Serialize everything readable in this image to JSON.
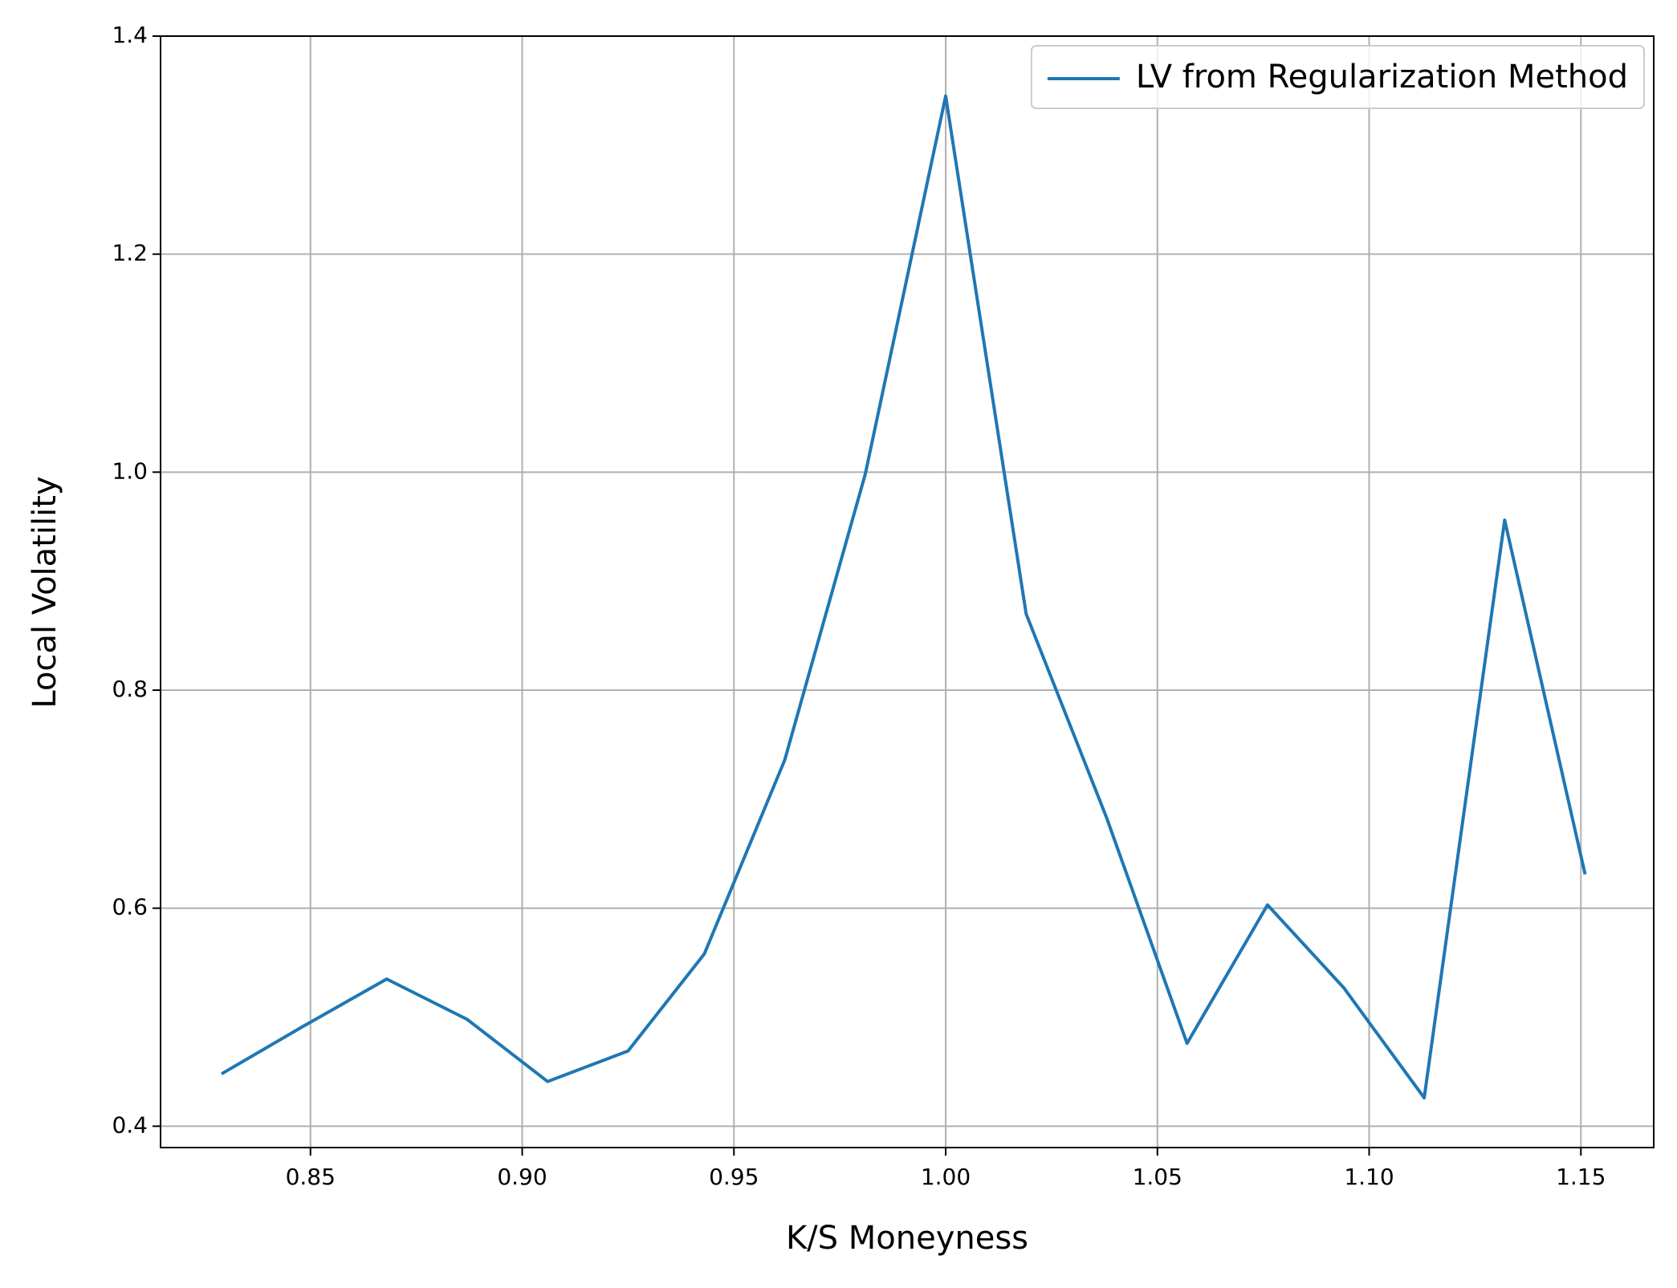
{
  "chart_data": {
    "type": "line",
    "x_label": "K/S Moneyness",
    "y_label": "Local Volatility",
    "x": [
      0.829,
      0.848,
      0.868,
      0.887,
      0.906,
      0.925,
      0.943,
      0.962,
      0.981,
      1.0,
      1.019,
      1.038,
      1.057,
      1.076,
      1.094,
      1.113,
      1.132,
      1.151
    ],
    "series": [
      {
        "name": "LV from Regularization Method",
        "color": "#1f77b4",
        "values": [
          0.448,
          0.491,
          0.535,
          0.498,
          0.441,
          0.469,
          0.558,
          0.736,
          0.998,
          1.345,
          0.87,
          0.683,
          0.476,
          0.603,
          0.527,
          0.426,
          0.956,
          0.631
        ]
      }
    ],
    "xlim": [
      0.8146,
      1.1672
    ],
    "ylim": [
      0.3804,
      1.4
    ],
    "xticks": [
      {
        "value": 0.85,
        "label": "0.85"
      },
      {
        "value": 0.9,
        "label": "0.90"
      },
      {
        "value": 0.95,
        "label": "0.95"
      },
      {
        "value": 1.0,
        "label": "1.00"
      },
      {
        "value": 1.05,
        "label": "1.05"
      },
      {
        "value": 1.1,
        "label": "1.10"
      },
      {
        "value": 1.15,
        "label": "1.15"
      }
    ],
    "yticks": [
      0.4,
      0.6,
      0.8,
      {
        "value": 1.0,
        "label": "1.0"
      },
      1.2,
      1.4
    ],
    "grid": true,
    "legend": "upper right"
  }
}
